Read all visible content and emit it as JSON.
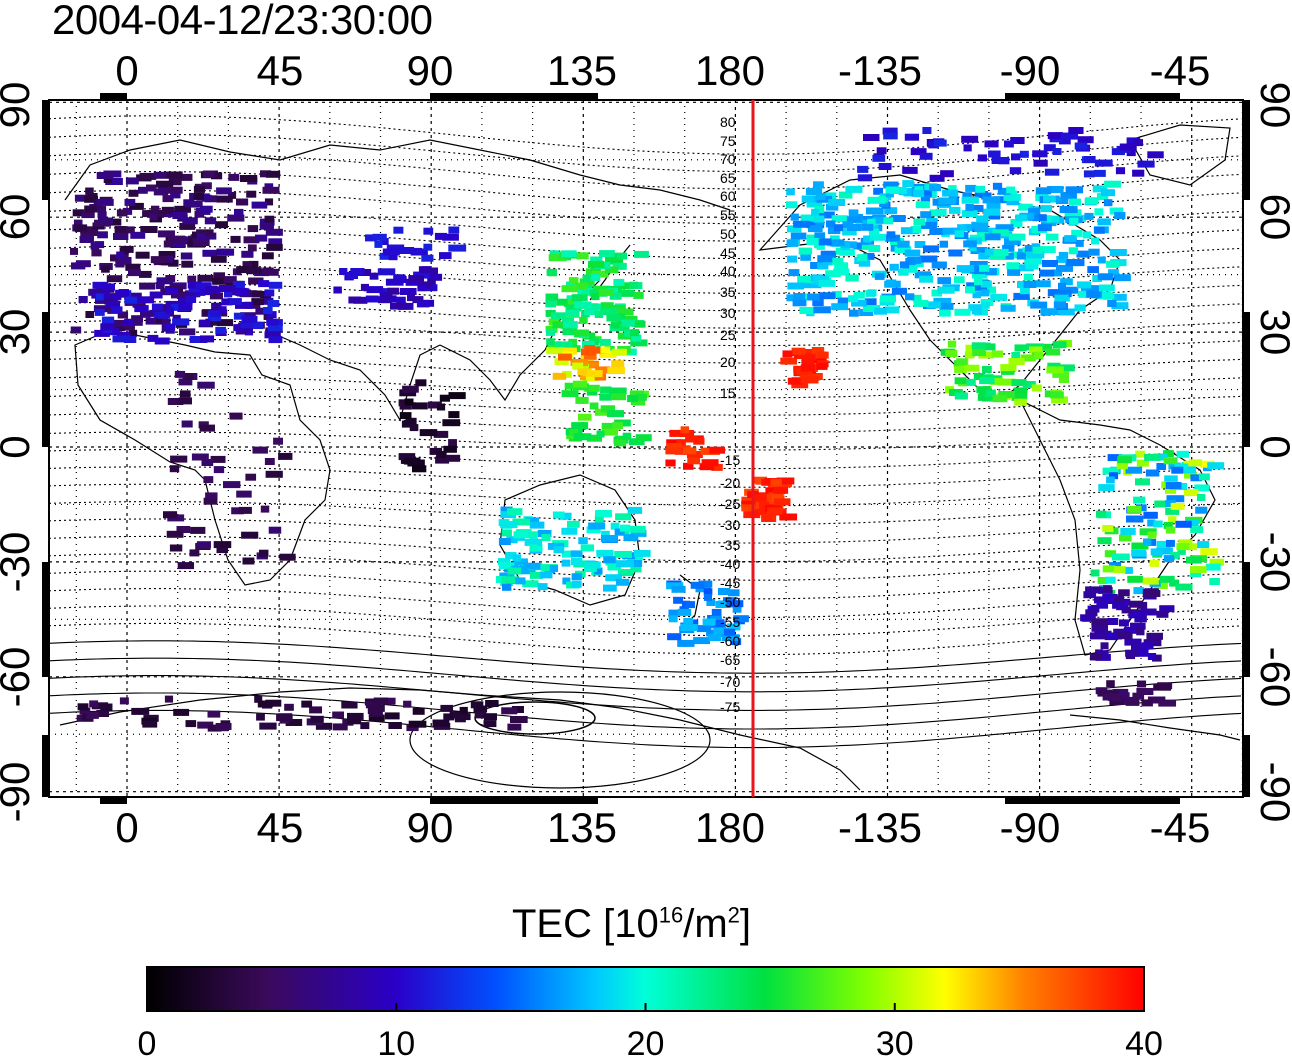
{
  "title": "2004-04-12/23:30:00",
  "map": {
    "top_lon_ticks": [
      "0",
      "45",
      "90",
      "135",
      "180",
      "-135",
      "-90",
      "-45"
    ],
    "bottom_lon_ticks": [
      "0",
      "45",
      "90",
      "135",
      "180",
      "-135",
      "-90",
      "-45"
    ],
    "left_lat_ticks": [
      "90",
      "60",
      "30",
      "0",
      "-30",
      "-60",
      "-90"
    ],
    "right_lat_ticks": [
      "90",
      "60",
      "30",
      "0",
      "-30",
      "-60",
      "-90"
    ],
    "contour_labels": [
      "80",
      "75",
      "70",
      "65",
      "60",
      "55",
      "50",
      "45",
      "40",
      "35",
      "30",
      "25",
      "20",
      "15",
      "-15",
      "-20",
      "-25",
      "-30",
      "-35",
      "-40",
      "-45",
      "-50",
      "-55",
      "-60",
      "-65",
      "-70",
      "-75"
    ],
    "meridian_marker_color": "#e8161b"
  },
  "colorbar": {
    "label_main": "TEC  [10",
    "label_exp1": "16",
    "label_mid": "/m",
    "label_exp2": "2",
    "label_end": "]",
    "ticks": [
      "0",
      "10",
      "20",
      "30",
      "40"
    ],
    "range": [
      0,
      40
    ]
  }
}
